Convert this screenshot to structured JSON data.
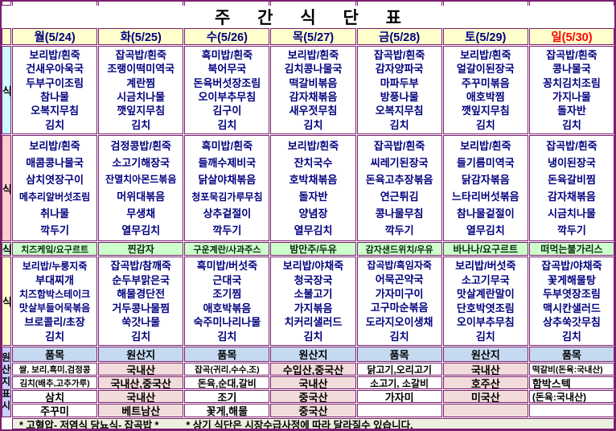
{
  "title": "주 간 식 단 표",
  "colors": {
    "border": "#7a1e6e",
    "weekday_text": "#00007f",
    "sunday_text": "#ff0000",
    "header_bg": "#ffffcc",
    "snack_bg": "#ccffcc",
    "origin_value_bg": "#f2dcdb",
    "origin_header_bg": "#c5d9f1",
    "footer_bg": "#ebf1de"
  },
  "days": [
    "월(5/24)",
    "화(5/25)",
    "수(5/26)",
    "목(5/27)",
    "금(5/28)",
    "토(5/29)",
    "일(5/30)"
  ],
  "sections": {
    "breakfast": {
      "label": "조식",
      "menus": [
        [
          "보리밥/흰죽",
          "건새우아욱국",
          "두부구이조림",
          "참나물",
          "오복지무침",
          "김치"
        ],
        [
          "잡곡밥/흰죽",
          "조랭이떡미역국",
          "계란찜",
          "시금치나물",
          "깻잎지무침",
          "김치"
        ],
        [
          "흑미밥/흰죽",
          "북어무국",
          "돈육버섯장조림",
          "오이부추무침",
          "김구이",
          "김치"
        ],
        [
          "보리밥/흰죽",
          "김치콩나물국",
          "떡갈비볶음",
          "감자채볶음",
          "새우젓무침",
          "김치"
        ],
        [
          "잡곡밥/흰죽",
          "감자양파국",
          "마파두부",
          "방풍나물",
          "오복지무침",
          "김치"
        ],
        [
          "보리밥/흰죽",
          "얼갈이된장국",
          "주꾸미볶음",
          "애호박찜",
          "깻잎지무침",
          "김치"
        ],
        [
          "잡곡밥/흰죽",
          "콩나물국",
          "꽁치김치조림",
          "가지나물",
          "돌자반",
          "김치"
        ]
      ]
    },
    "lunch": {
      "label": "중식",
      "menus": [
        [
          "보리밥/흰죽",
          "매콤콩나물국",
          "삼치엿장구이",
          "메추리알버섯조림",
          "취나물",
          "깍두기"
        ],
        [
          "검정콩밥/흰죽",
          "소고기해장국",
          "잔멸치아몬드볶음",
          "머위대볶음",
          "무생채",
          "열무김치"
        ],
        [
          "흑미밥/흰죽",
          "들깨수제비국",
          "닭살야채볶음",
          "청포묵김가루무침",
          "상추겉절이",
          "깍두기"
        ],
        [
          "보리밥/흰죽",
          "잔치국수",
          "호박채볶음",
          "돌자반",
          "양념장",
          "열무김치"
        ],
        [
          "잡곡밥/흰죽",
          "씨레기된장국",
          "돈육고추장볶음",
          "연근튀김",
          "콩나물무침",
          "깍두기"
        ],
        [
          "보리밥/흰죽",
          "들기름미역국",
          "닭감자볶음",
          "느타리버섯볶음",
          "참나물겉절이",
          "열무김치"
        ],
        [
          "잡곡밥/흰죽",
          "냉이된장국",
          "돈육갈비찜",
          "감자채볶음",
          "시금치나물",
          "깍두기"
        ]
      ]
    },
    "snack": {
      "label": "간식",
      "menus": [
        "치즈케잌/요구르트",
        "찐감자",
        "구운계란/사과주스",
        "밤만주/두유",
        "감자샌드위치/우유",
        "바나나/요구르트",
        "떠먹는불가리스"
      ]
    },
    "dinner": {
      "label": "석식",
      "menus": [
        [
          "보리밥/누룽지죽",
          "부대찌개",
          "치즈함박스테이크",
          "맛살부들어묵볶음",
          "브로콜리/초장",
          "김치"
        ],
        [
          "잡곡밥/참깨죽",
          "순두부맑은국",
          "해물경단전",
          "거두콩나물찜",
          "쑥갓나물",
          "김치"
        ],
        [
          "흑미밥/버섯죽",
          "근대국",
          "조기찜",
          "애호박볶음",
          "숙주미나리나물",
          "김치"
        ],
        [
          "보리밥/야채죽",
          "청국장국",
          "소불고기",
          "가지볶음",
          "치커리샐러드",
          "김치"
        ],
        [
          "잡곡밥/흑임자죽",
          "어묵곤약국",
          "가자미구이",
          "고구마순볶음",
          "도라지오이생채",
          "김치"
        ],
        [
          "보리밥/버섯죽",
          "소고기무국",
          "맛살계란말이",
          "단호박엿조림",
          "오이부추무침",
          "김치"
        ],
        [
          "잡곡밥/야채죽",
          "꽃게해물탕",
          "두부엿장조림",
          "맥시칸샐러드",
          "상추쑥갓무침",
          "김치"
        ]
      ]
    }
  },
  "origin": {
    "side_label": "원산지표시",
    "columns": [
      {
        "header": "품목",
        "type": "item",
        "rows": [
          "쌀, 보리,흑미,검정콩",
          "김치(배추,고추가루)",
          "삼치",
          "주꾸미"
        ]
      },
      {
        "header": "원산지",
        "type": "origin",
        "rows": [
          "국내산",
          "국내산,중국산",
          "국내산",
          "베트남산"
        ]
      },
      {
        "header": "품목",
        "type": "item",
        "rows": [
          "잡곡(귀리,수수,조)",
          "돈육,순대,갈비",
          "조기",
          "꽃게,해물"
        ]
      },
      {
        "header": "원산지",
        "type": "origin",
        "rows": [
          "수입산,중국산",
          "국내산",
          "중국산",
          "중국산"
        ]
      },
      {
        "header": "품목",
        "type": "item",
        "rows": [
          "닭고기,오리고기",
          "소고기, 소갈비",
          "가자미",
          ""
        ]
      },
      {
        "header": "원산지",
        "type": "origin",
        "rows": [
          "국내산",
          "호주산",
          "미국산",
          ""
        ]
      },
      {
        "header": "품목",
        "type": "item",
        "left_align": true,
        "rows": [
          "떡갈비(돈육:국내산)",
          "함박스텍",
          "(돈육:국내산)",
          ""
        ]
      }
    ]
  },
  "footer": {
    "left": "* 고혈압- 저염식   당뇨식- 잡곡밥 *",
    "right": "* 상기 식단은 시장수급사정에 따라 달라질수 있습니다."
  }
}
